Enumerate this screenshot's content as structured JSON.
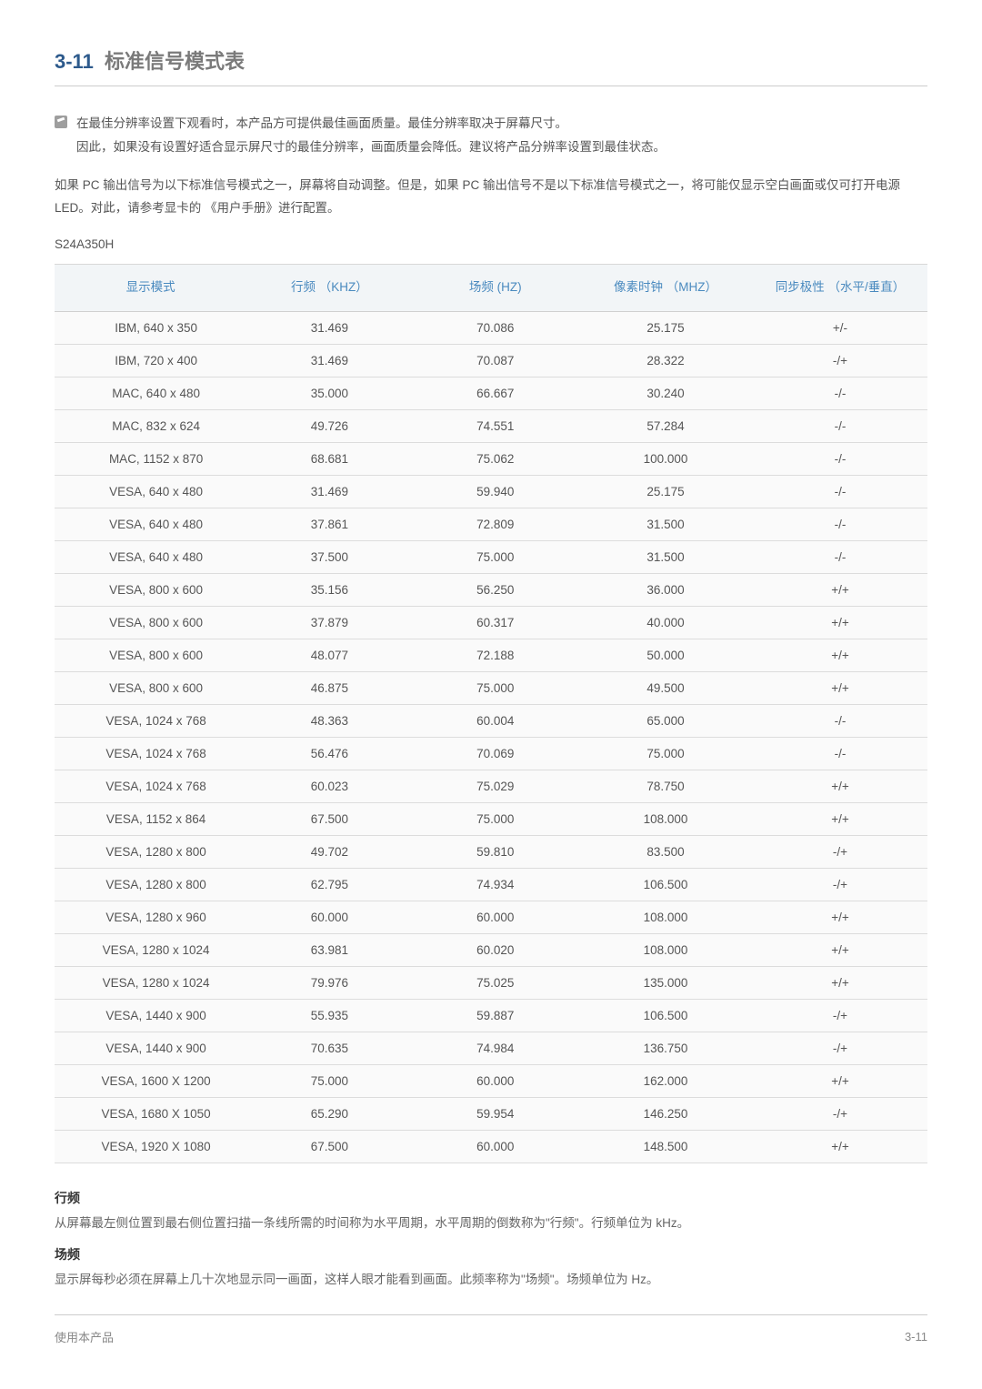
{
  "section": {
    "number": "3-11",
    "title": "标准信号模式表"
  },
  "note": {
    "line1": "在最佳分辨率设置下观看时，本产品方可提供最佳画面质量。最佳分辨率取决于屏幕尺寸。",
    "line2": "因此，如果没有设置好适合显示屏尺寸的最佳分辨率，画面质量会降低。建议将产品分辨率设置到最佳状态。"
  },
  "paragraph": "如果 PC 输出信号为以下标准信号模式之一，屏幕将自动调整。但是，如果 PC 输出信号不是以下标准信号模式之一，将可能仅显示空白画面或仅可打开电源 LED。对此，请参考显卡的 《用户手册》进行配置。",
  "model": "S24A350H",
  "table": {
    "columns": [
      "显示模式",
      "行频 （KHZ）",
      "场频 (HZ)",
      "像素时钟 （MHZ）",
      "同步极性 （水平/垂直）"
    ],
    "rows": [
      [
        "IBM, 640 x 350",
        "31.469",
        "70.086",
        "25.175",
        "+/-"
      ],
      [
        "IBM, 720 x 400",
        "31.469",
        "70.087",
        "28.322",
        "-/+"
      ],
      [
        "MAC, 640 x 480",
        "35.000",
        "66.667",
        "30.240",
        "-/-"
      ],
      [
        "MAC, 832 x 624",
        "49.726",
        "74.551",
        "57.284",
        "-/-"
      ],
      [
        "MAC, 1152 x 870",
        "68.681",
        "75.062",
        "100.000",
        "-/-"
      ],
      [
        "VESA, 640 x 480",
        "31.469",
        "59.940",
        "25.175",
        "-/-"
      ],
      [
        "VESA, 640 x 480",
        "37.861",
        "72.809",
        "31.500",
        "-/-"
      ],
      [
        "VESA, 640 x 480",
        "37.500",
        "75.000",
        "31.500",
        "-/-"
      ],
      [
        "VESA, 800 x 600",
        "35.156",
        "56.250",
        "36.000",
        "+/+"
      ],
      [
        "VESA, 800 x 600",
        "37.879",
        "60.317",
        "40.000",
        "+/+"
      ],
      [
        "VESA, 800 x 600",
        "48.077",
        "72.188",
        "50.000",
        "+/+"
      ],
      [
        "VESA, 800 x 600",
        "46.875",
        "75.000",
        "49.500",
        "+/+"
      ],
      [
        "VESA, 1024 x 768",
        "48.363",
        "60.004",
        "65.000",
        "-/-"
      ],
      [
        "VESA, 1024 x 768",
        "56.476",
        "70.069",
        "75.000",
        "-/-"
      ],
      [
        "VESA, 1024 x 768",
        "60.023",
        "75.029",
        "78.750",
        "+/+"
      ],
      [
        "VESA, 1152 x 864",
        "67.500",
        "75.000",
        "108.000",
        "+/+"
      ],
      [
        "VESA, 1280 x 800",
        "49.702",
        "59.810",
        "83.500",
        "-/+"
      ],
      [
        "VESA, 1280 x 800",
        "62.795",
        "74.934",
        "106.500",
        "-/+"
      ],
      [
        "VESA, 1280 x 960",
        "60.000",
        "60.000",
        "108.000",
        "+/+"
      ],
      [
        "VESA, 1280 x 1024",
        "63.981",
        "60.020",
        "108.000",
        "+/+"
      ],
      [
        "VESA, 1280 x 1024",
        "79.976",
        "75.025",
        "135.000",
        "+/+"
      ],
      [
        "VESA, 1440 x 900",
        "55.935",
        "59.887",
        "106.500",
        "-/+"
      ],
      [
        "VESA, 1440 x 900",
        "70.635",
        "74.984",
        "136.750",
        "-/+"
      ],
      [
        "VESA, 1600 X 1200",
        "75.000",
        "60.000",
        "162.000",
        "+/+"
      ],
      [
        "VESA, 1680 X 1050",
        "65.290",
        "59.954",
        "146.250",
        "-/+"
      ],
      [
        "VESA, 1920 X 1080",
        "67.500",
        "60.000",
        "148.500",
        "+/+"
      ]
    ]
  },
  "definitions": {
    "t1": "行频",
    "d1": "从屏幕最左侧位置到最右侧位置扫描一条线所需的时间称为水平周期，水平周期的倒数称为\"行频\"。行频单位为 kHz。",
    "t2": "场频",
    "d2": "显示屏每秒必须在屏幕上几十次地显示同一画面，这样人眼才能看到画面。此频率称为\"场频\"。场频单位为 Hz。"
  },
  "footer": {
    "left": "使用本产品",
    "right": "3-11"
  },
  "style": {
    "col_widths": [
      "22%",
      "19%",
      "19%",
      "20%",
      "20%"
    ],
    "header_bg": "#f2f5f7",
    "header_color": "#4a8abf",
    "row_bg": "#fafafa",
    "border_color": "#dcdcdc",
    "accent_color": "#2d5a8c"
  }
}
